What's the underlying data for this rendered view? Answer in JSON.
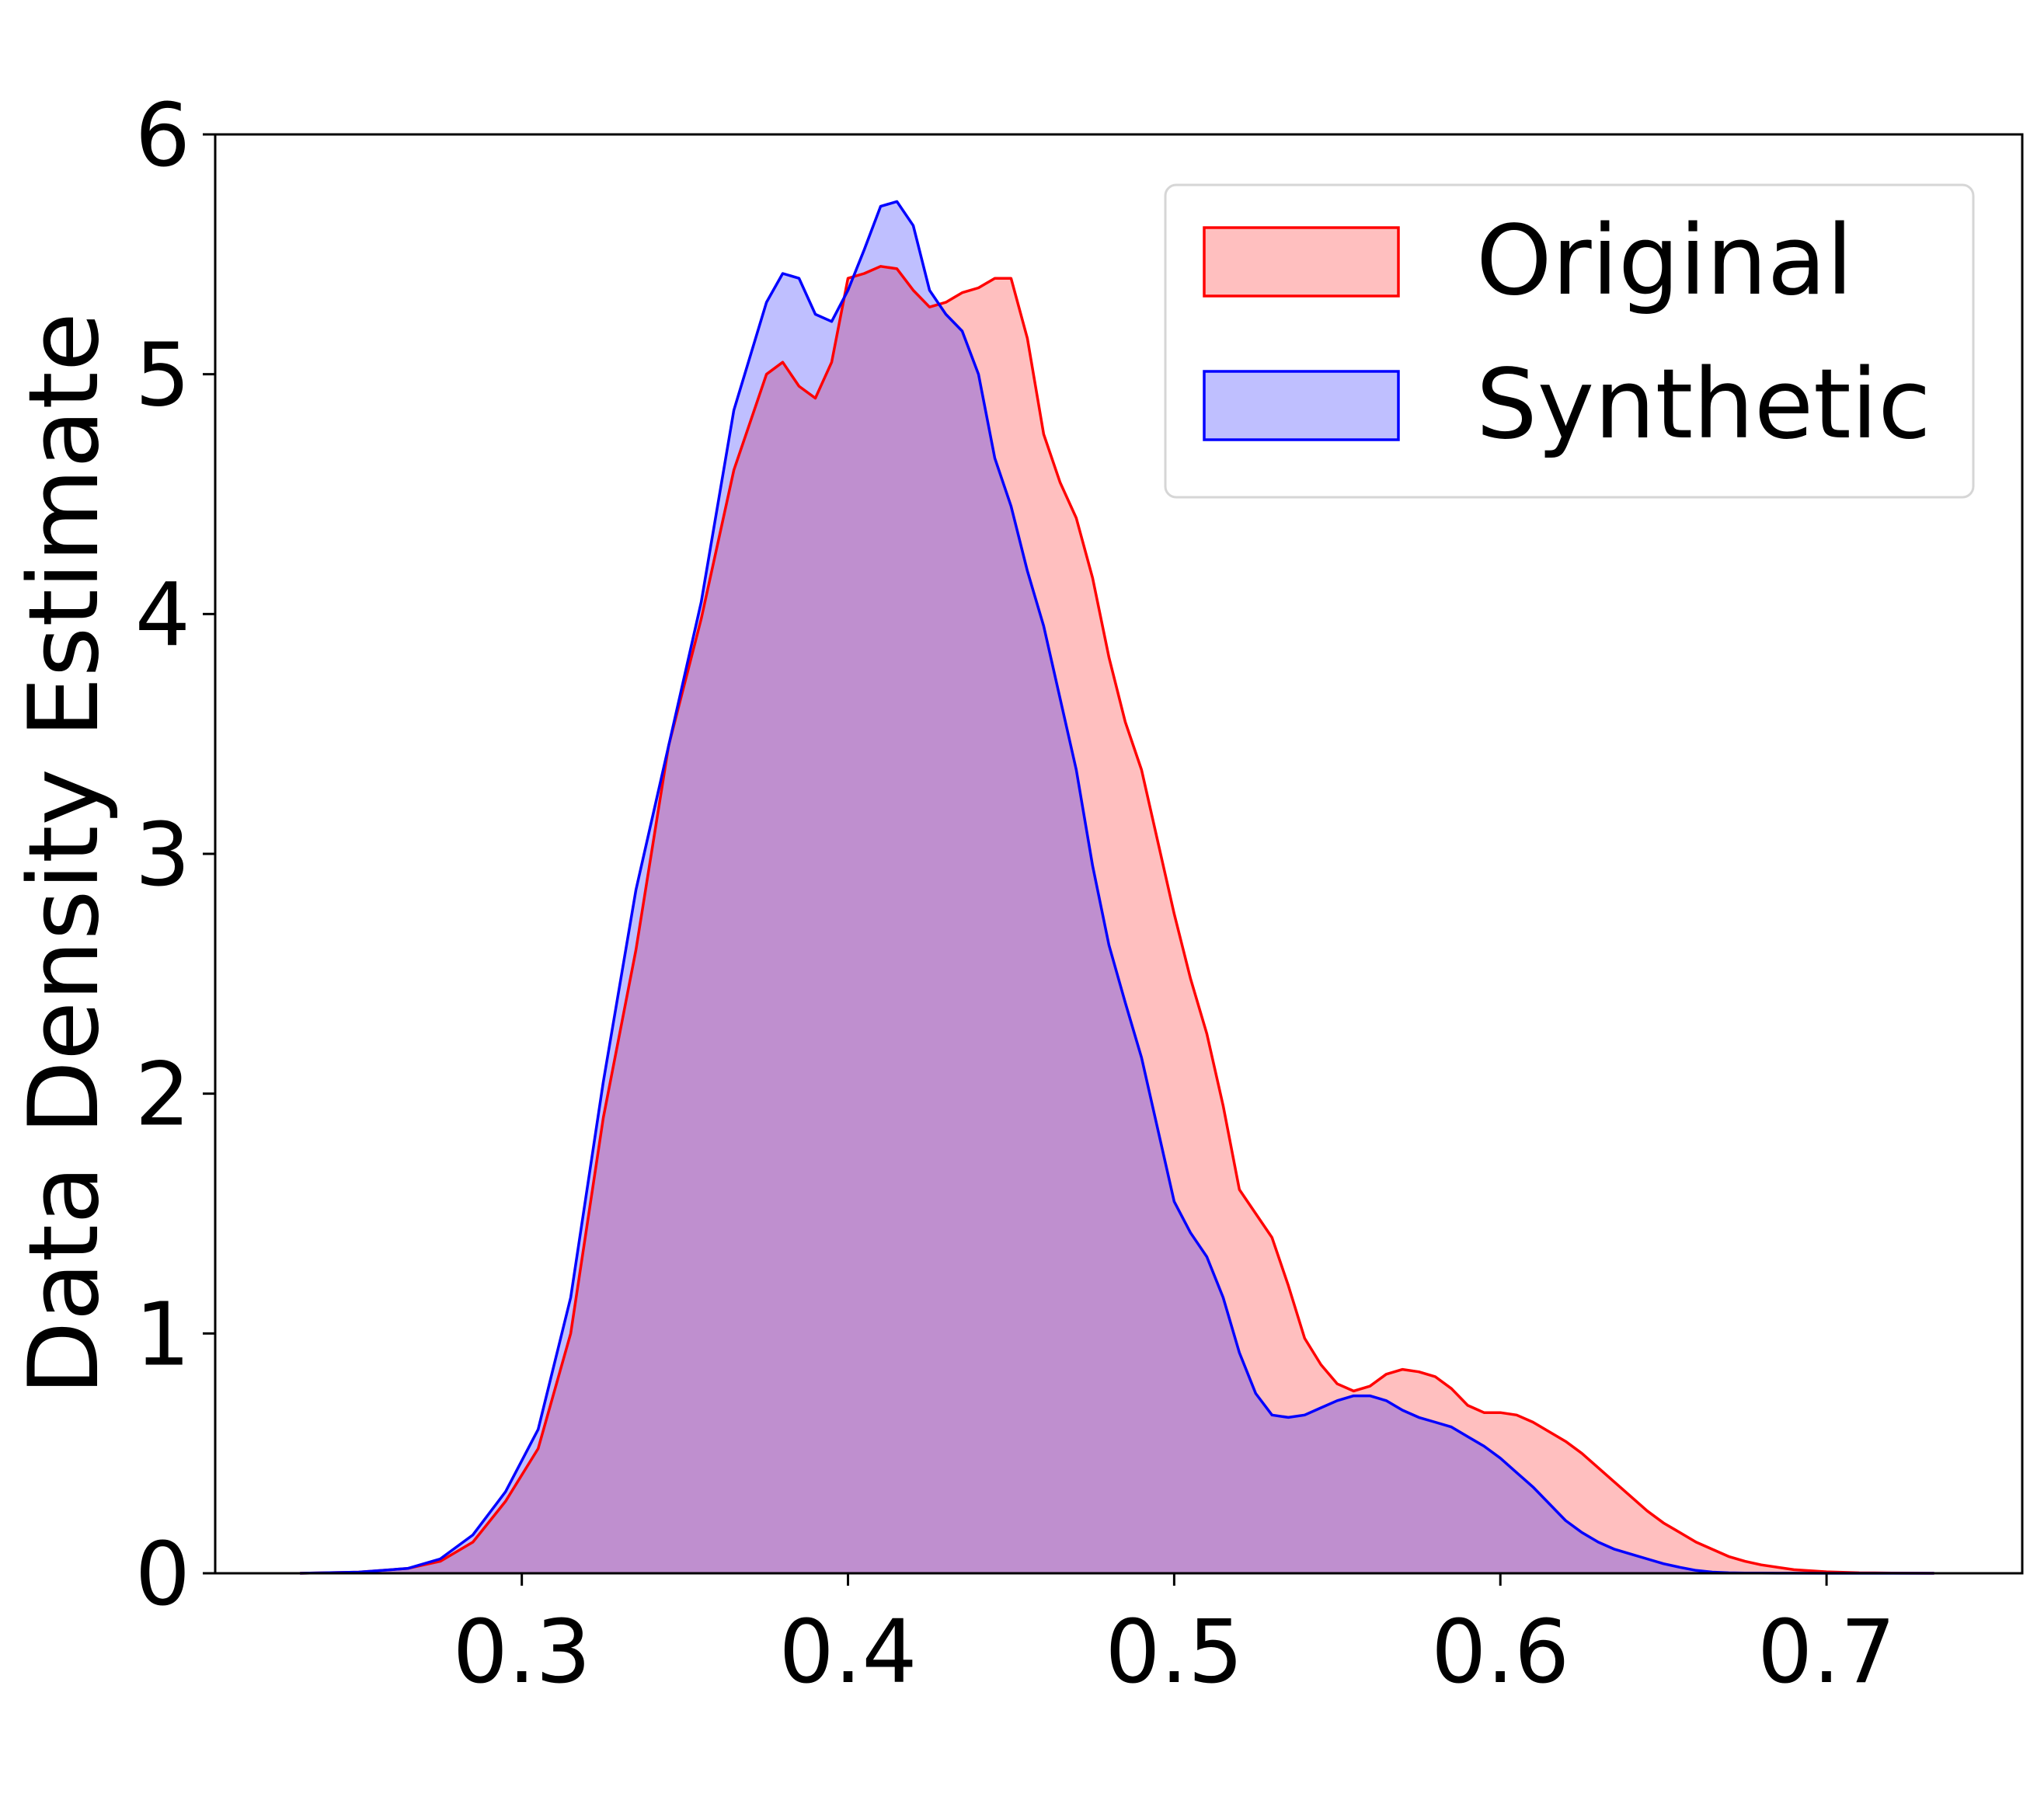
{
  "chart_data": {
    "type": "area",
    "title": "",
    "xlabel": "",
    "ylabel": "Data Density Estimate",
    "xlim": [
      0.206,
      0.76
    ],
    "ylim": [
      0,
      6
    ],
    "xticks": [
      0.3,
      0.4,
      0.5,
      0.6,
      0.7
    ],
    "xtick_labels": [
      "0.3",
      "0.4",
      "0.5",
      "0.6",
      "0.7"
    ],
    "yticks": [
      0,
      1,
      2,
      3,
      4,
      5,
      6
    ],
    "ytick_labels": [
      "0",
      "1",
      "2",
      "3",
      "4",
      "5",
      "6"
    ],
    "grid": false,
    "legend": {
      "position": "top-right"
    },
    "series": [
      {
        "name": "Original",
        "stroke": "#ff0000",
        "fill": "#ff0000",
        "fill_opacity": 0.25,
        "x": [
          0.232,
          0.25,
          0.265,
          0.275,
          0.285,
          0.295,
          0.305,
          0.315,
          0.325,
          0.335,
          0.345,
          0.355,
          0.365,
          0.375,
          0.38,
          0.385,
          0.39,
          0.395,
          0.4,
          0.405,
          0.41,
          0.415,
          0.42,
          0.425,
          0.43,
          0.435,
          0.44,
          0.445,
          0.45,
          0.455,
          0.46,
          0.465,
          0.47,
          0.475,
          0.48,
          0.485,
          0.49,
          0.495,
          0.5,
          0.505,
          0.51,
          0.515,
          0.52,
          0.525,
          0.53,
          0.535,
          0.54,
          0.545,
          0.55,
          0.555,
          0.56,
          0.565,
          0.57,
          0.575,
          0.58,
          0.585,
          0.59,
          0.595,
          0.6,
          0.605,
          0.61,
          0.615,
          0.62,
          0.625,
          0.63,
          0.635,
          0.64,
          0.645,
          0.65,
          0.655,
          0.66,
          0.665,
          0.67,
          0.675,
          0.68,
          0.69,
          0.7,
          0.71,
          0.72,
          0.733
        ],
        "y": [
          0,
          0.005,
          0.02,
          0.05,
          0.13,
          0.3,
          0.52,
          1.0,
          1.9,
          2.6,
          3.45,
          3.98,
          4.6,
          5.0,
          5.05,
          4.95,
          4.9,
          5.05,
          5.4,
          5.42,
          5.45,
          5.44,
          5.35,
          5.28,
          5.3,
          5.34,
          5.36,
          5.4,
          5.4,
          5.15,
          4.75,
          4.55,
          4.4,
          4.15,
          3.82,
          3.55,
          3.35,
          3.05,
          2.75,
          2.48,
          2.25,
          1.95,
          1.6,
          1.5,
          1.4,
          1.2,
          0.98,
          0.87,
          0.79,
          0.76,
          0.78,
          0.83,
          0.85,
          0.84,
          0.82,
          0.77,
          0.7,
          0.67,
          0.67,
          0.66,
          0.63,
          0.59,
          0.55,
          0.5,
          0.44,
          0.38,
          0.32,
          0.26,
          0.21,
          0.17,
          0.13,
          0.1,
          0.07,
          0.05,
          0.035,
          0.015,
          0.006,
          0.002,
          0.001,
          0
        ]
      },
      {
        "name": "Synthetic",
        "stroke": "#0000ff",
        "fill": "#0000ff",
        "fill_opacity": 0.25,
        "x": [
          0.232,
          0.25,
          0.265,
          0.275,
          0.285,
          0.295,
          0.305,
          0.315,
          0.325,
          0.335,
          0.345,
          0.355,
          0.365,
          0.375,
          0.38,
          0.385,
          0.39,
          0.395,
          0.4,
          0.405,
          0.41,
          0.415,
          0.42,
          0.425,
          0.43,
          0.435,
          0.44,
          0.445,
          0.45,
          0.455,
          0.46,
          0.465,
          0.47,
          0.475,
          0.48,
          0.485,
          0.49,
          0.495,
          0.5,
          0.505,
          0.51,
          0.515,
          0.52,
          0.525,
          0.53,
          0.535,
          0.54,
          0.545,
          0.55,
          0.555,
          0.56,
          0.565,
          0.57,
          0.575,
          0.58,
          0.585,
          0.59,
          0.595,
          0.6,
          0.605,
          0.61,
          0.615,
          0.62,
          0.625,
          0.63,
          0.635,
          0.64,
          0.645,
          0.65,
          0.655,
          0.66,
          0.665,
          0.67,
          0.675,
          0.68,
          0.69,
          0.7,
          0.71,
          0.72,
          0.733
        ],
        "y": [
          0,
          0.005,
          0.02,
          0.06,
          0.16,
          0.34,
          0.6,
          1.15,
          2.05,
          2.85,
          3.45,
          4.05,
          4.85,
          5.3,
          5.42,
          5.4,
          5.25,
          5.22,
          5.35,
          5.52,
          5.7,
          5.72,
          5.62,
          5.35,
          5.25,
          5.18,
          5.0,
          4.65,
          4.45,
          4.18,
          3.95,
          3.65,
          3.35,
          2.95,
          2.62,
          2.38,
          2.15,
          1.85,
          1.55,
          1.42,
          1.32,
          1.15,
          0.92,
          0.75,
          0.66,
          0.65,
          0.66,
          0.69,
          0.72,
          0.74,
          0.74,
          0.72,
          0.68,
          0.65,
          0.63,
          0.61,
          0.57,
          0.53,
          0.48,
          0.42,
          0.36,
          0.29,
          0.22,
          0.17,
          0.13,
          0.1,
          0.08,
          0.06,
          0.04,
          0.025,
          0.012,
          0.005,
          0.002,
          0.001,
          0.0005,
          0.0002,
          0.0001,
          0,
          0,
          0
        ]
      }
    ]
  }
}
